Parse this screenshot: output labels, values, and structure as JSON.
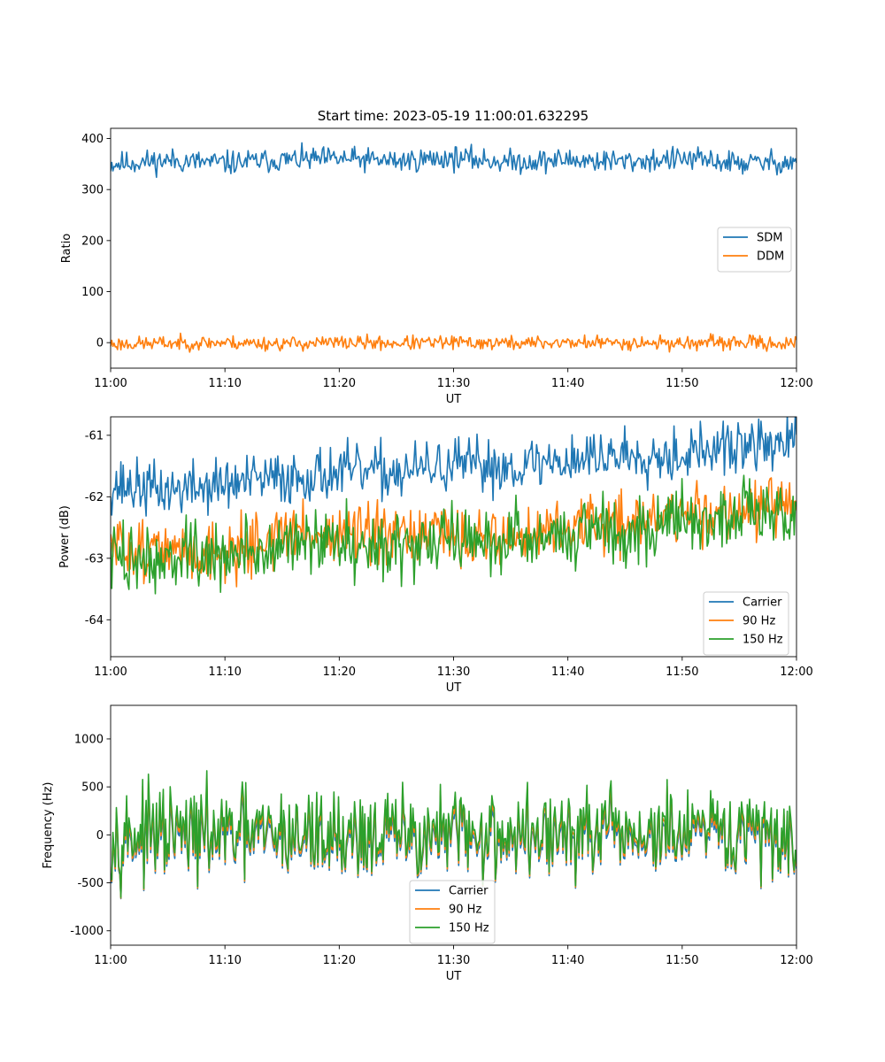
{
  "title": "Start time: 2023-05-19 11:00:01.632295",
  "chart_data": [
    {
      "type": "line",
      "xlabel": "UT",
      "ylabel": "Ratio",
      "xlim": [
        "11:00",
        "12:00"
      ],
      "xticks": [
        "11:00",
        "11:10",
        "11:20",
        "11:30",
        "11:40",
        "11:50",
        "12:00"
      ],
      "ylim": [
        -50,
        420
      ],
      "yticks": [
        0,
        100,
        200,
        300,
        400
      ],
      "legend_position": "center-right",
      "series": [
        {
          "name": "SDM",
          "color": "#1f77b4",
          "x": [
            "11:00",
            "11:05",
            "11:10",
            "11:15",
            "11:20",
            "11:25",
            "11:30",
            "11:35",
            "11:40",
            "11:45",
            "11:50",
            "11:55",
            "12:00"
          ],
          "y": [
            350,
            357,
            352,
            358,
            360,
            356,
            362,
            354,
            358,
            355,
            360,
            352,
            354
          ],
          "noise": 20,
          "seed": 11
        },
        {
          "name": "DDM",
          "color": "#ff7f0e",
          "x": [
            "11:00",
            "11:05",
            "11:10",
            "11:15",
            "11:20",
            "11:25",
            "11:30",
            "11:35",
            "11:40",
            "11:45",
            "11:50",
            "11:55",
            "12:00"
          ],
          "y": [
            -3,
            -1,
            0,
            -2,
            0,
            -1,
            0,
            -1,
            0,
            0,
            -1,
            0,
            -2
          ],
          "noise": 12,
          "seed": 23
        }
      ]
    },
    {
      "type": "line",
      "xlabel": "UT",
      "ylabel": "Power (dB)",
      "xlim": [
        "11:00",
        "12:00"
      ],
      "xticks": [
        "11:00",
        "11:10",
        "11:20",
        "11:30",
        "11:40",
        "11:50",
        "12:00"
      ],
      "ylim": [
        -64.6,
        -60.7
      ],
      "yticks": [
        -64,
        -63,
        -62,
        -61
      ],
      "legend_position": "lower-right",
      "series": [
        {
          "name": "Carrier",
          "color": "#1f77b4",
          "x": [
            "11:00",
            "11:05",
            "11:10",
            "11:15",
            "11:20",
            "11:25",
            "11:30",
            "11:35",
            "11:40",
            "11:45",
            "11:50",
            "11:55",
            "12:00"
          ],
          "y": [
            -61.8,
            -61.9,
            -61.8,
            -61.7,
            -61.6,
            -61.6,
            -61.5,
            -61.5,
            -61.4,
            -61.3,
            -61.3,
            -61.2,
            -61.1
          ],
          "noise": 0.38,
          "seed": 37
        },
        {
          "name": "90 Hz",
          "color": "#ff7f0e",
          "x": [
            "11:00",
            "11:05",
            "11:10",
            "11:15",
            "11:20",
            "11:25",
            "11:30",
            "11:35",
            "11:40",
            "11:45",
            "11:50",
            "11:55",
            "12:00"
          ],
          "y": [
            -62.8,
            -62.9,
            -62.9,
            -62.6,
            -62.6,
            -62.7,
            -62.6,
            -62.7,
            -62.5,
            -62.4,
            -62.3,
            -62.2,
            -62.2
          ],
          "noise": 0.42,
          "seed": 51
        },
        {
          "name": "150 Hz",
          "color": "#2ca02c",
          "x": [
            "11:00",
            "11:05",
            "11:10",
            "11:15",
            "11:20",
            "11:25",
            "11:30",
            "11:35",
            "11:40",
            "11:45",
            "11:50",
            "11:55",
            "12:00"
          ],
          "y": [
            -63.0,
            -63.0,
            -63.0,
            -62.8,
            -62.7,
            -62.8,
            -62.7,
            -62.7,
            -62.6,
            -62.5,
            -62.4,
            -62.3,
            -62.2
          ],
          "noise": 0.48,
          "seed": 73
        }
      ]
    },
    {
      "type": "line",
      "xlabel": "UT",
      "ylabel": "Frequency (Hz)",
      "xlim": [
        "11:00",
        "12:00"
      ],
      "xticks": [
        "11:00",
        "11:10",
        "11:20",
        "11:30",
        "11:40",
        "11:50",
        "12:00"
      ],
      "ylim": [
        -1150,
        1350
      ],
      "yticks": [
        -1000,
        -500,
        0,
        500,
        1000
      ],
      "legend_position": "lower-center",
      "series": [
        {
          "name": "Carrier",
          "color": "#1f77b4",
          "x": [
            "11:00",
            "11:30",
            "12:00"
          ],
          "y": [
            -60,
            -60,
            -60
          ],
          "noise": 360,
          "seed": 97
        },
        {
          "name": "90 Hz",
          "color": "#ff7f0e",
          "x": [
            "11:00",
            "11:30",
            "12:00"
          ],
          "y": [
            -20,
            -20,
            -20
          ],
          "noise": 380,
          "seed": 97
        },
        {
          "name": "150 Hz",
          "color": "#2ca02c",
          "x": [
            "11:00",
            "11:30",
            "12:00"
          ],
          "y": [
            20,
            20,
            20
          ],
          "noise": 400,
          "seed": 97
        }
      ]
    }
  ]
}
